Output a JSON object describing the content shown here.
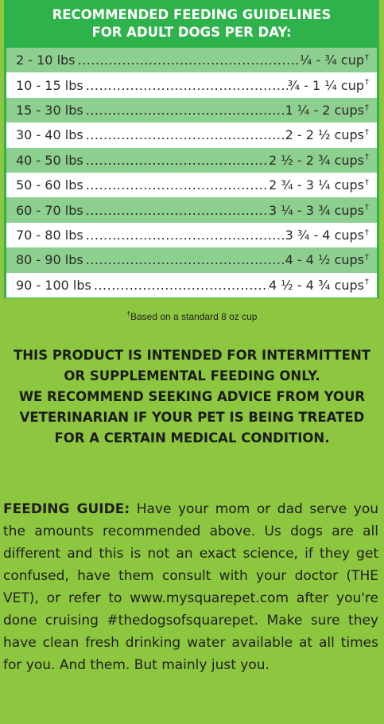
{
  "header": {
    "line1": "RECOMMENDED FEEDING GUIDELINES",
    "line2": "FOR ADULT DOGS PER DAY:"
  },
  "rows": [
    {
      "weight": "2 - 10 lbs",
      "amount": "¼ - ¾ cup"
    },
    {
      "weight": "10 - 15 lbs",
      "amount": "¾ - 1 ¼ cup"
    },
    {
      "weight": "15 - 30 lbs",
      "amount": "1 ¼ - 2 cups"
    },
    {
      "weight": "30 - 40 lbs",
      "amount": "2 - 2 ½ cups"
    },
    {
      "weight": "40 - 50 lbs",
      "amount": "2 ½ - 2 ¾ cups"
    },
    {
      "weight": "50 - 60 lbs",
      "amount": "2 ¾ - 3 ¼ cups"
    },
    {
      "weight": "60 - 70 lbs",
      "amount": "3 ¼ - 3 ¾ cups"
    },
    {
      "weight": "70 - 80 lbs",
      "amount": "3 ¾ - 4 cups"
    },
    {
      "weight": "80 - 90 lbs",
      "amount": "4 - 4 ½ cups"
    },
    {
      "weight": "90 - 100 lbs",
      "amount": "4 ½ - 4 ¾ cups"
    }
  ],
  "dagger": "†",
  "footnote": "Based on a standard 8 oz cup",
  "notice": {
    "line1": "THIS PRODUCT IS INTENDED FOR INTERMITTENT",
    "line2": "OR SUPPLEMENTAL FEEDING ONLY.",
    "line3": "WE RECOMMEND SEEKING ADVICE FROM YOUR",
    "line4": "VETERINARIAN IF YOUR PET IS BEING TREATED",
    "line5": "FOR A CERTAIN MEDICAL CONDITION."
  },
  "guide": {
    "label": "FEEDING GUIDE:",
    "text": "Have your mom or dad serve you the amounts recommended above. Us dogs are all different and this is not an exact science, if they get confused, have them consult with your doctor (THE VET), or refer to www.mysquarepet.com after you're done cruising #thedogsofsquarepet. Make sure they have clean fresh drinking water available at all times for you. And them. But mainly just you."
  },
  "colors": {
    "background": "#8dc63f",
    "header_green": "#2eb24b",
    "row_green": "#8dcf8e",
    "row_white": "#ffffff"
  }
}
